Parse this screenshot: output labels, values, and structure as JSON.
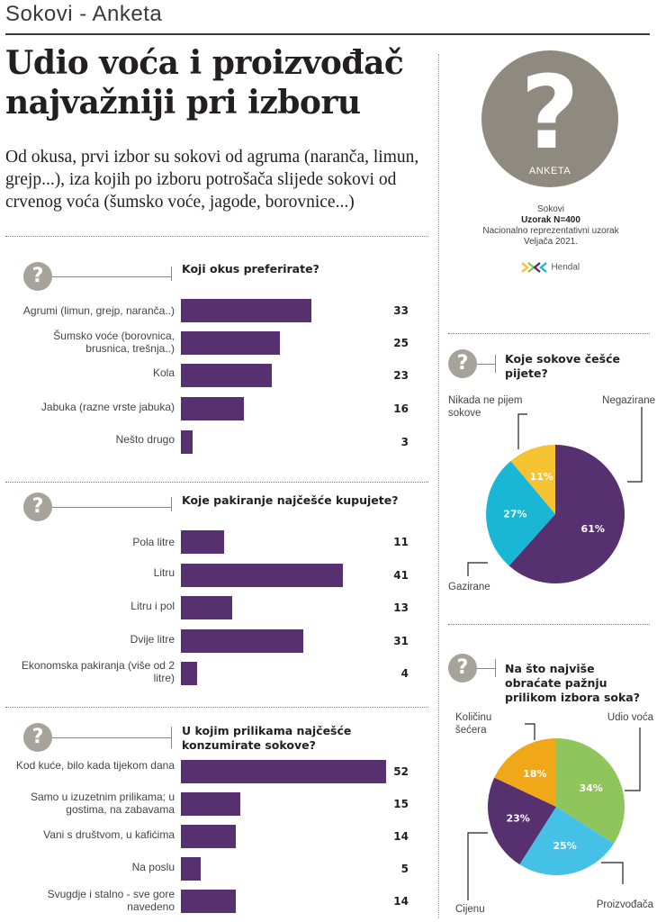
{
  "section_label": "Sokovi - Anketa",
  "headline": "Udio voća i proizvođač najvažniji pri izboru",
  "lead": "Od okusa, prvi izbor su sokovi od agruma (naranča, limun, grejp...), iza kojih po izboru potrošača slijede sokovi od crvenog voća (šumsko voće, jagode, borovnice...)",
  "icon_glyph": "?",
  "badge": {
    "glyph": "?",
    "label": "ANKETA",
    "icon": "question-mark-icon",
    "color": "#8e8a80"
  },
  "meta": {
    "line1": "Sokovi",
    "sample": "Uzorak N=400",
    "line3": "Nacionalno reprezentativni uzorak",
    "date": "Veljača 2021.",
    "logo_text": "Hendal"
  },
  "colors": {
    "bar": "#56306f",
    "icon": "#a7a29a",
    "text": "#231f20"
  },
  "chart_data": [
    {
      "type": "bar",
      "orientation": "horizontal",
      "title": "Koji okus preferirate?",
      "categories": [
        "Agrumi (limun, grejp, naranča..)",
        "Šumsko voće (borovnica, brusnica, trešnja..)",
        "Kola",
        "Jabuka (razne vrste jabuka)",
        "Nešto drugo"
      ],
      "values": [
        33,
        25,
        23,
        16,
        3
      ],
      "xlim": [
        0,
        52
      ]
    },
    {
      "type": "bar",
      "orientation": "horizontal",
      "title": "Koje pakiranje najčešće kupujete?",
      "categories": [
        "Pola litre",
        "Litru",
        "Litru i pol",
        "Dvije litre",
        "Ekonomska pakiranja (više od 2 litre)"
      ],
      "values": [
        11,
        41,
        13,
        31,
        4
      ],
      "xlim": [
        0,
        52
      ]
    },
    {
      "type": "bar",
      "orientation": "horizontal",
      "title": "U kojim prilikama najčešće konzumirate sokove?",
      "categories": [
        "Kod kuće, bilo kada tijekom dana",
        "Samo u izuzetnim prilikama; u gostima, na zabavama",
        "Vani s društvom, u kafićima",
        "Na poslu",
        "Svugdje i stalno - sve gore navedeno"
      ],
      "values": [
        52,
        15,
        14,
        5,
        14
      ],
      "xlim": [
        0,
        52
      ]
    },
    {
      "type": "pie",
      "title": "Koje sokove češće pijete?",
      "categories": [
        "Negazirane",
        "Gazirane",
        "Nikada ne pijem sokove"
      ],
      "values": [
        61,
        27,
        11
      ],
      "value_labels": [
        "61%",
        "27%",
        "11%"
      ],
      "colors": [
        "#56306f",
        "#19b6d6",
        "#f5c232"
      ]
    },
    {
      "type": "pie",
      "title": "Na što najviše obraćate pažnju prilikom izbora soka?",
      "categories": [
        "Udio voća",
        "Proizvođača",
        "Cijenu",
        "Količinu šećera"
      ],
      "values": [
        34,
        25,
        23,
        18
      ],
      "value_labels": [
        "34%",
        "25%",
        "23%",
        "18%"
      ],
      "colors": [
        "#8fc55a",
        "#45c1e8",
        "#56306f",
        "#f0a818"
      ]
    }
  ]
}
